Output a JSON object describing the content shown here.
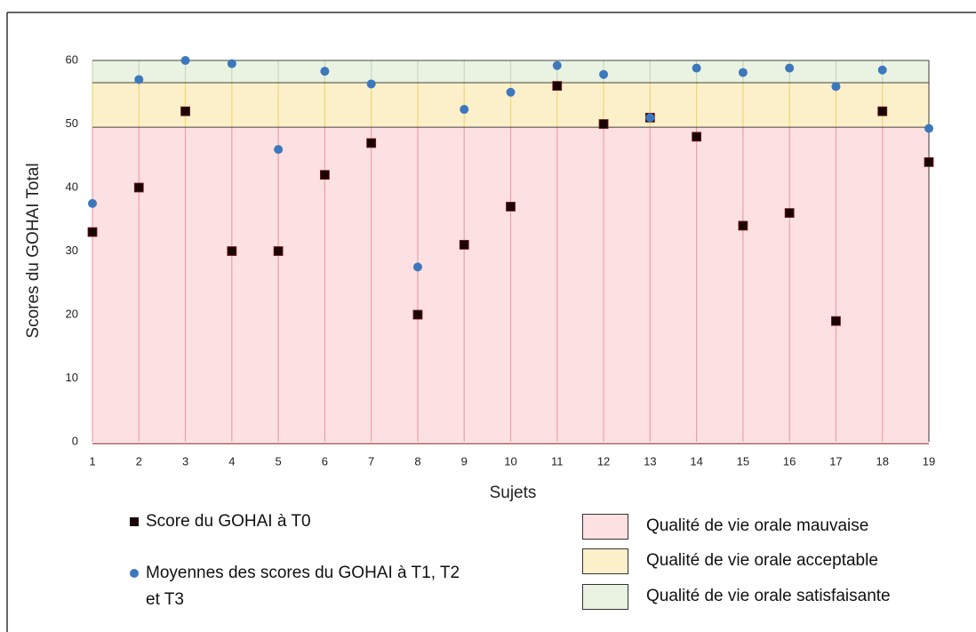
{
  "chart_data": {
    "type": "scatter",
    "xlabel": "Sujets",
    "ylabel": "Scores du GOHAI Total",
    "x": [
      1,
      2,
      3,
      4,
      5,
      6,
      7,
      8,
      9,
      10,
      11,
      12,
      13,
      14,
      15,
      16,
      17,
      18,
      19
    ],
    "xlim": [
      1,
      19
    ],
    "xticks": [
      1,
      2,
      3,
      4,
      5,
      6,
      7,
      8,
      9,
      10,
      11,
      12,
      13,
      14,
      15,
      16,
      17,
      18,
      19
    ],
    "ylim": [
      0,
      60
    ],
    "yticks": [
      0,
      10,
      20,
      30,
      40,
      50,
      60
    ],
    "series": [
      {
        "name": "Score du GOHAI à T0",
        "color": "#1a0505",
        "marker": "square",
        "values": [
          33,
          40,
          52,
          30,
          30,
          42,
          47,
          20,
          31,
          37,
          56,
          50,
          51,
          48,
          34,
          36,
          19,
          52,
          44
        ]
      },
      {
        "name": "Moyennes des scores du GOHAI à T1, T2 et T3",
        "color": "#3d78bd",
        "marker": "circle",
        "values": [
          37.5,
          57,
          60,
          59.5,
          46,
          58.3,
          56.3,
          27.5,
          52.3,
          55,
          59.2,
          57.8,
          51,
          58.8,
          58.1,
          58.8,
          55.9,
          58.5,
          49.3
        ]
      }
    ],
    "bands": [
      {
        "name": "Qualité de vie orale mauvaise",
        "color": "#fde0e2",
        "line_color": "#e9a3a8",
        "range": [
          0,
          49.5
        ]
      },
      {
        "name": "Qualité de vie orale acceptable",
        "color": "#fbf0c9",
        "line_color": "#f0d57a",
        "range": [
          49.5,
          56.5
        ]
      },
      {
        "name": "Qualité de vie orale satisfaisante",
        "color": "#eaf3e2",
        "line_color": "#c9d6be",
        "range": [
          56.5,
          60
        ]
      }
    ]
  }
}
